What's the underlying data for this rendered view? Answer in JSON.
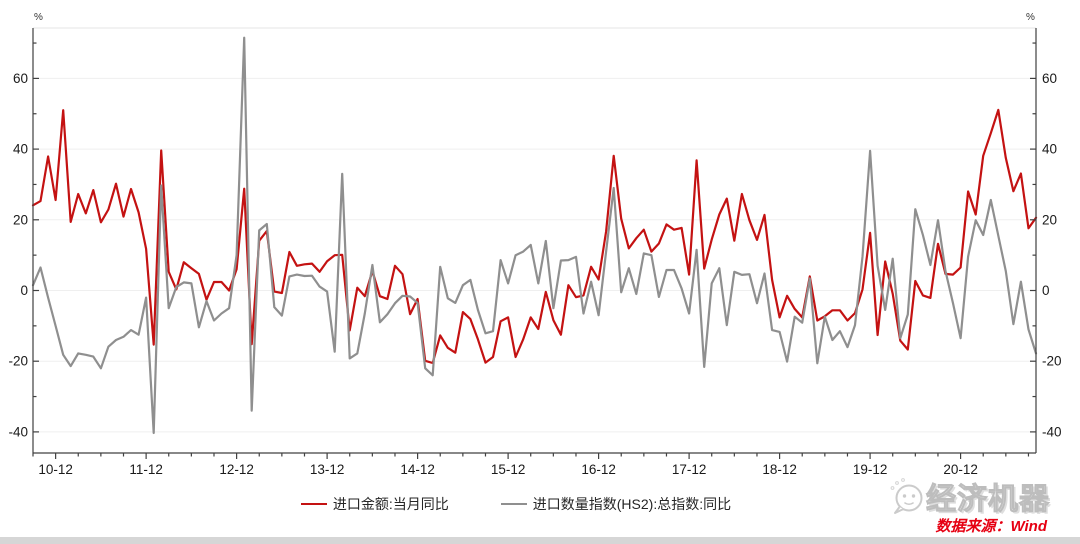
{
  "chart_data": {
    "type": "line",
    "title": "",
    "x_axis": {
      "start_month": "2010-09",
      "end_month": "2021-10",
      "tick_labels": [
        "10-12",
        "11-12",
        "12-12",
        "13-12",
        "14-12",
        "15-12",
        "16-12",
        "17-12",
        "18-12",
        "19-12",
        "20-12"
      ],
      "minor_tick_every_months": 3
    },
    "y_axis": {
      "unit_left": "%",
      "unit_right": "%",
      "ylim": [
        -46,
        74
      ],
      "major_ticks": [
        -40,
        -20,
        0,
        20,
        40,
        60
      ],
      "minor_ticks": [
        -30,
        -10,
        10,
        30,
        50,
        70
      ],
      "grid": true
    },
    "legend_position": "bottom",
    "series": [
      {
        "name": "进口金额:当月同比",
        "color": "#c41212",
        "values": [
          24.1,
          25.3,
          37.9,
          25.6,
          51.0,
          19.4,
          27.3,
          21.8,
          28.4,
          19.3,
          22.9,
          30.2,
          20.9,
          28.7,
          22.1,
          11.8,
          -15.3,
          39.6,
          5.3,
          0.3,
          8.0,
          6.3,
          4.7,
          -2.6,
          2.4,
          2.4,
          0.0,
          6.0,
          28.8,
          -15.2,
          14.1,
          16.8,
          -0.3,
          -0.7,
          10.9,
          7.0,
          7.4,
          7.6,
          5.3,
          8.3,
          10.0,
          10.1,
          -11.3,
          0.8,
          -1.6,
          5.5,
          -1.6,
          -2.4,
          7.0,
          4.6,
          -6.7,
          -2.4,
          -19.9,
          -20.5,
          -12.7,
          -16.2,
          -17.6,
          -6.1,
          -8.1,
          -13.8,
          -20.4,
          -18.8,
          -8.7,
          -7.6,
          -18.8,
          -13.8,
          -7.6,
          -10.9,
          -0.4,
          -8.4,
          -12.5,
          1.5,
          -1.9,
          -1.4,
          6.7,
          3.1,
          16.7,
          38.1,
          20.3,
          11.9,
          14.8,
          17.2,
          11.0,
          13.3,
          18.7,
          17.2,
          17.7,
          4.5,
          36.8,
          6.2,
          14.4,
          21.5,
          26.0,
          14.1,
          27.3,
          19.9,
          14.3,
          21.4,
          3.0,
          -7.6,
          -1.5,
          -5.2,
          -7.6,
          4.0,
          -8.5,
          -7.3,
          -5.6,
          -5.6,
          -8.5,
          -6.4,
          0.3,
          16.3,
          -12.6,
          8.2,
          -0.9,
          -14.2,
          -16.7,
          2.7,
          -1.4,
          -2.1,
          13.2,
          4.7,
          4.5,
          6.5,
          28.0,
          21.5,
          38.1,
          44.5,
          51.1,
          37.5,
          28.1,
          33.1,
          17.6,
          20.6
        ]
      },
      {
        "name": "进口数量指数(HS2):总指数:同比",
        "color": "#8f8f8f",
        "values": [
          1.5,
          6.5,
          -2.0,
          -10.0,
          -18.2,
          -21.4,
          -17.8,
          -18.2,
          -18.7,
          -22.0,
          -15.9,
          -14.0,
          -13.1,
          -11.2,
          -12.5,
          -2.0,
          -40.3,
          29.7,
          -5.0,
          1.0,
          2.3,
          2.0,
          -10.4,
          -3.0,
          -8.5,
          -6.5,
          -5.0,
          10.0,
          71.5,
          -34.0,
          17.0,
          18.8,
          -4.7,
          -7.1,
          4.0,
          4.5,
          4.1,
          4.2,
          1.1,
          -0.3,
          -17.3,
          33.0,
          -19.2,
          -17.8,
          -6.5,
          7.2,
          -9.0,
          -6.7,
          -3.6,
          -1.5,
          -1.7,
          -3.5,
          -22.0,
          -24.0,
          6.7,
          -2.2,
          -3.5,
          1.5,
          3.0,
          -5.5,
          -12.1,
          -11.5,
          8.6,
          2.0,
          10.0,
          11.0,
          12.9,
          2.0,
          14.0,
          -5.0,
          8.5,
          8.6,
          9.5,
          -6.5,
          2.5,
          -7.0,
          11.0,
          29.0,
          -0.5,
          6.3,
          -1.0,
          10.5,
          10.0,
          -1.8,
          5.8,
          5.8,
          0.6,
          -6.5,
          11.5,
          -21.6,
          2.0,
          6.3,
          -9.8,
          5.3,
          4.4,
          4.6,
          -3.6,
          4.8,
          -11.2,
          -11.7,
          -20.1,
          -7.4,
          -9.1,
          3.4,
          -20.6,
          -7.4,
          -14.0,
          -11.5,
          -16.0,
          -9.8,
          9.6,
          39.5,
          7.0,
          -5.5,
          9.0,
          -13.5,
          -6.8,
          23.0,
          15.7,
          7.2,
          19.9,
          5.5,
          -3.6,
          -13.5,
          9.6,
          19.9,
          15.7,
          25.6,
          15.5,
          5.5,
          -9.5,
          2.5,
          -11.0,
          -17.8
        ]
      }
    ]
  },
  "legend": {
    "items": [
      {
        "label": "进口金额:当月同比",
        "color": "#c41212"
      },
      {
        "label": "进口数量指数(HS2):总指数:同比",
        "color": "#8f8f8f"
      }
    ]
  },
  "watermark": {
    "brand": "经济机器",
    "icon": "wechat-chat-bubble-icon"
  },
  "source_note": "数据来源：Wind"
}
